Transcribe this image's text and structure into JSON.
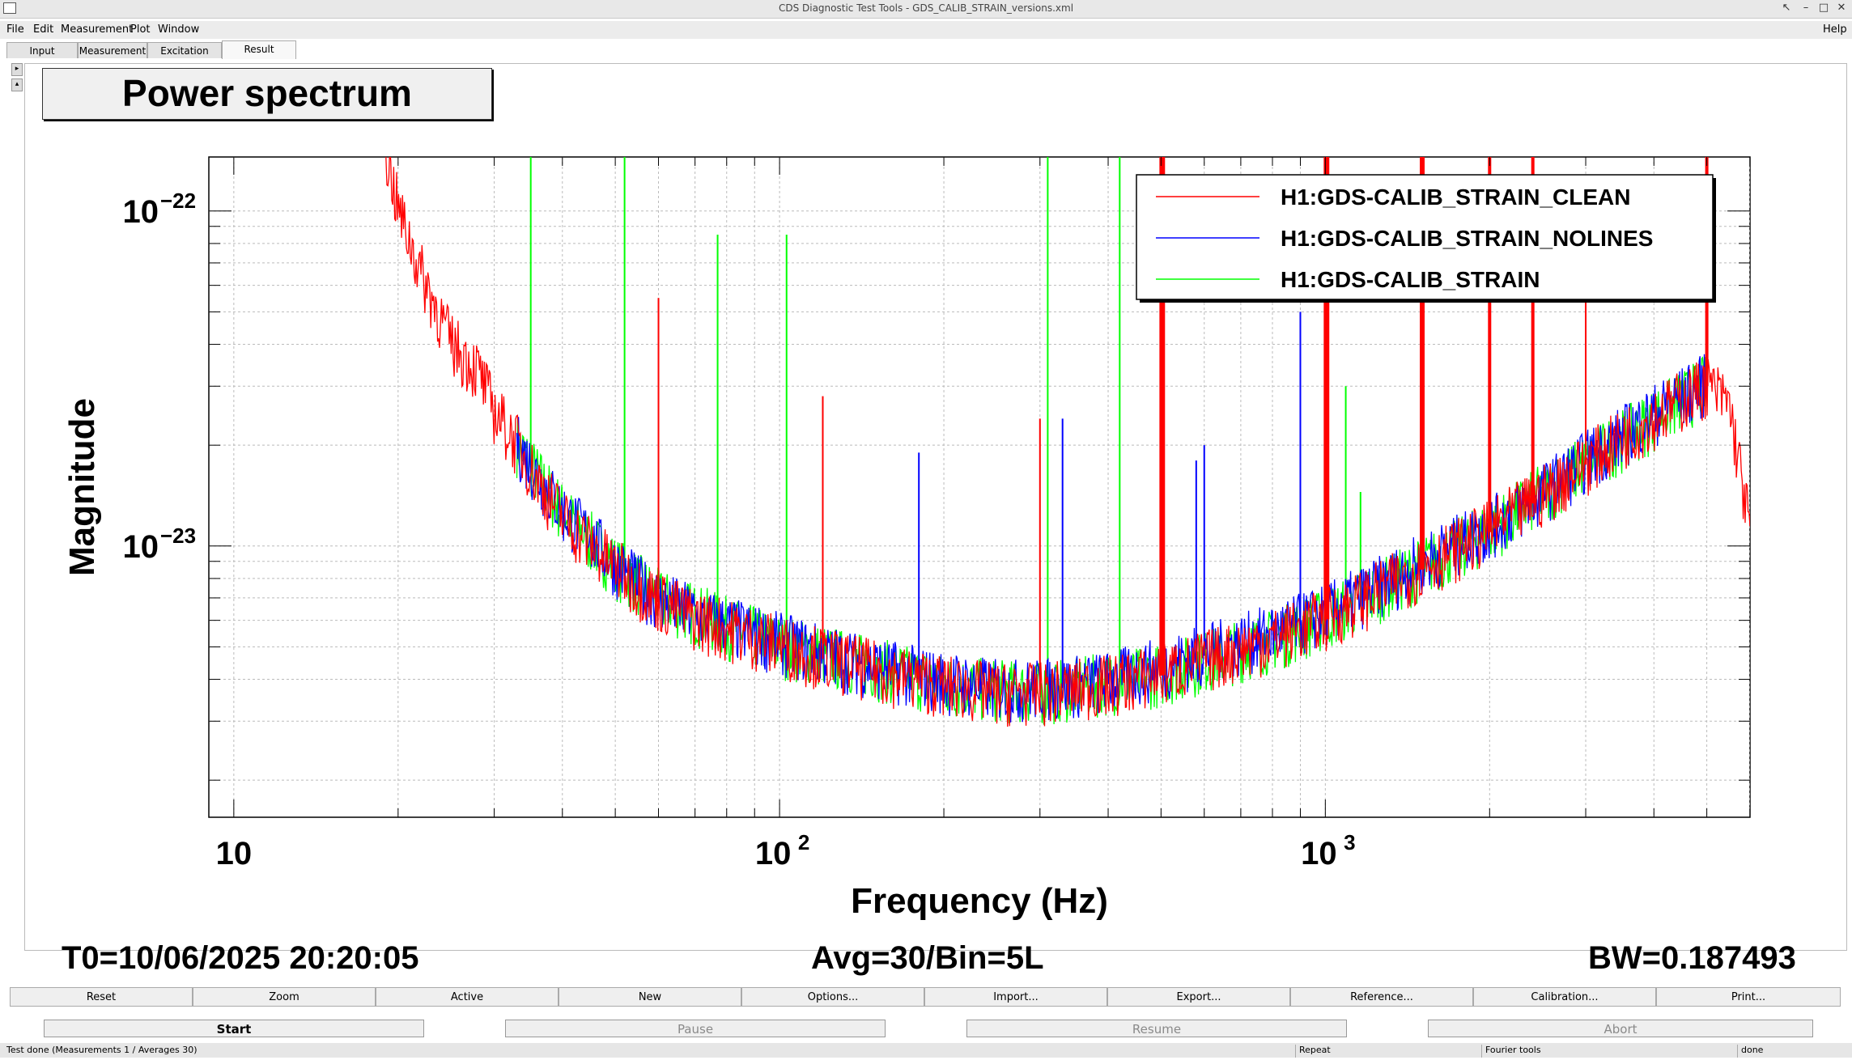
{
  "window": {
    "title": "CDS Diagnostic Test Tools - GDS_CALIB_STRAIN_versions.xml"
  },
  "menu": {
    "file": "File",
    "edit": "Edit",
    "measurement": "Measurement",
    "plot": "Plot",
    "window": "Window",
    "help": "Help"
  },
  "tabs": [
    "Input",
    "Measurement",
    "Excitation",
    "Result"
  ],
  "active_tab": "Result",
  "plot_title": "Power spectrum",
  "info": {
    "t0": "T0=10/06/2025 20:20:05",
    "avg": "Avg=30/Bin=5L",
    "bw": "BW=0.187493"
  },
  "buttons": [
    "Reset",
    "Zoom",
    "Active",
    "New",
    "Options...",
    "Import...",
    "Export...",
    "Reference...",
    "Calibration...",
    "Print..."
  ],
  "controls": {
    "start": "Start",
    "pause": "Pause",
    "resume": "Resume",
    "abort": "Abort"
  },
  "status": {
    "main": "Test done (Measurements 1 / Averages 30)",
    "repeat": "Repeat",
    "tool": "Fourier tools",
    "state": "done"
  },
  "chart_data": {
    "type": "line",
    "xlabel": "Frequency (Hz)",
    "ylabel": "Magnitude",
    "xscale": "log",
    "yscale": "log",
    "xlim": [
      9,
      6000
    ],
    "ylim": [
      1.55e-24,
      1.45e-22
    ],
    "x_ticks": [
      {
        "value": 10,
        "label": "10"
      },
      {
        "value": 100,
        "label": "10",
        "exp": "2"
      },
      {
        "value": 1000,
        "label": "10",
        "exp": "3"
      }
    ],
    "y_ticks": [
      {
        "value": 1e-22,
        "label": "10",
        "exp": "−22"
      },
      {
        "value": 1e-23,
        "label": "10",
        "exp": "−23"
      }
    ],
    "grid": true,
    "legend_position": "top-right",
    "series": [
      {
        "name": "H1:GDS-CALIB_STRAIN_CLEAN",
        "color": "#ff0000",
        "x": [
          19,
          20,
          22,
          25,
          28,
          30,
          33,
          36,
          40,
          45,
          50,
          55,
          60,
          70,
          80,
          100,
          120,
          150,
          200,
          250,
          300,
          400,
          500,
          600,
          800,
          1000,
          1200,
          1500,
          2000,
          2500,
          3000,
          4000,
          5000,
          5500,
          6000
        ],
        "y": [
          1.5e-22,
          1e-22,
          6.5e-23,
          4e-23,
          3.3e-23,
          2.5e-23,
          2e-23,
          1.55e-23,
          1.2e-23,
          1e-23,
          8.5e-24,
          7.5e-24,
          6.8e-24,
          6e-24,
          5.6e-24,
          5e-24,
          4.6e-24,
          4.2e-24,
          3.8e-24,
          3.6e-24,
          3.6e-24,
          3.8e-24,
          4.1e-24,
          4.5e-24,
          5.2e-24,
          6e-24,
          7e-24,
          8.5e-24,
          1.1e-23,
          1.4e-23,
          1.75e-23,
          2.4e-23,
          3e-23,
          2.6e-23,
          1.1e-23
        ],
        "lines": [
          {
            "f": 60,
            "peak": 5.5e-23
          },
          {
            "f": 120,
            "peak": 2.8e-23
          },
          {
            "f": 300,
            "peak": 2.4e-23
          },
          {
            "f": 500,
            "peak": 1.45e-22
          },
          {
            "f": 505,
            "peak": 1.45e-22
          },
          {
            "f": 1000,
            "peak": 1.45e-22
          },
          {
            "f": 1010,
            "peak": 1.45e-22
          },
          {
            "f": 1500,
            "peak": 1.45e-22
          },
          {
            "f": 1510,
            "peak": 1.45e-22
          },
          {
            "f": 2000,
            "peak": 1.45e-22
          },
          {
            "f": 2400,
            "peak": 1.45e-22
          },
          {
            "f": 3000,
            "peak": 5.5e-23
          },
          {
            "f": 5000,
            "peak": 1.45e-22
          }
        ]
      },
      {
        "name": "H1:GDS-CALIB_STRAIN_NOLINES",
        "color": "#0000ff",
        "x": [
          33,
          36,
          40,
          45,
          50,
          55,
          60,
          70,
          80,
          100,
          120,
          150,
          200,
          250,
          300,
          400,
          500,
          600,
          800,
          1000,
          1200,
          1500,
          2000,
          2500,
          3000,
          4000,
          5000
        ],
        "y": [
          2e-23,
          1.6e-23,
          1.25e-23,
          1.05e-23,
          8.7e-24,
          7.6e-24,
          6.9e-24,
          6.1e-24,
          5.7e-24,
          5.1e-24,
          4.7e-24,
          4.3e-24,
          3.9e-24,
          3.7e-24,
          3.7e-24,
          3.9e-24,
          4.3e-24,
          4.7e-24,
          5.4e-24,
          6.2e-24,
          7.2e-24,
          8.8e-24,
          1.12e-23,
          1.42e-23,
          1.78e-23,
          2.45e-23,
          3.05e-23
        ],
        "lines": [
          {
            "f": 180,
            "peak": 1.9e-23
          },
          {
            "f": 330,
            "peak": 2.4e-23
          },
          {
            "f": 580,
            "peak": 1.8e-23
          },
          {
            "f": 600,
            "peak": 2e-23
          },
          {
            "f": 900,
            "peak": 5e-23
          }
        ]
      },
      {
        "name": "H1:GDS-CALIB_STRAIN",
        "color": "#00ff00",
        "x": [
          33,
          36,
          40,
          50,
          60,
          80,
          100,
          150,
          200,
          300,
          500,
          800,
          1000,
          1500,
          2000,
          3000,
          5000
        ],
        "y": [
          2e-23,
          1.6e-23,
          1.25e-23,
          8.6e-24,
          6.9e-24,
          5.7e-24,
          5e-24,
          4.3e-24,
          3.8e-24,
          3.6e-24,
          4.1e-24,
          5.2e-24,
          6e-24,
          8.5e-24,
          1.1e-23,
          1.75e-23,
          3e-23
        ],
        "lines": [
          {
            "f": 35,
            "peak": 1.45e-22
          },
          {
            "f": 52,
            "peak": 1.45e-22
          },
          {
            "f": 77,
            "peak": 8.5e-23
          },
          {
            "f": 103,
            "peak": 8.5e-23
          },
          {
            "f": 310,
            "peak": 1.45e-22
          },
          {
            "f": 420,
            "peak": 1.45e-22
          },
          {
            "f": 1090,
            "peak": 3e-23
          },
          {
            "f": 1160,
            "peak": 1.45e-23
          }
        ]
      }
    ]
  }
}
